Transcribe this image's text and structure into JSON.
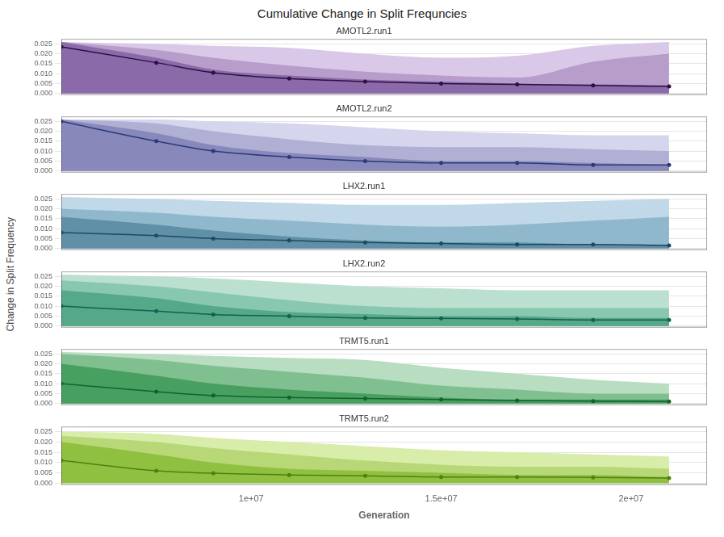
{
  "title": "Cumulative Change in Split Frequncies",
  "ylabel": "Change in Split Frequency",
  "chart_data": [
    {
      "type": "line",
      "subtitle": "AMOTL2.run1",
      "x": [
        5000000,
        7500000,
        9000000,
        11000000,
        13000000,
        15000000,
        17000000,
        19000000,
        21000000
      ],
      "series": [
        {
          "color": "#2d0f45",
          "marker": "circle",
          "values": [
            0.0235,
            0.0155,
            0.0105,
            0.0075,
            0.006,
            0.005,
            0.0045,
            0.004,
            0.0035
          ]
        },
        {
          "type": "area",
          "color": "#8b6aaa",
          "values": [
            0.026,
            0.018,
            0.012,
            0.009,
            0.007,
            0.006,
            0.005,
            0.0045,
            0.004
          ]
        },
        {
          "type": "area",
          "color": "#b89dca",
          "values": [
            0.026,
            0.022,
            0.018,
            0.014,
            0.011,
            0.009,
            0.008,
            0.016,
            0.02
          ]
        },
        {
          "type": "area",
          "color": "#d9c8e8",
          "values": [
            0.026,
            0.025,
            0.024,
            0.023,
            0.02,
            0.018,
            0.019,
            0.024,
            0.026
          ]
        }
      ],
      "xlim": [
        5000000,
        22000000
      ],
      "ylim": [
        -0.0008,
        0.0275
      ],
      "yticks": [
        {
          "value": 0,
          "label": "0.000"
        },
        0.005,
        {
          "value": 0.01,
          "label": "0.010"
        },
        0.015,
        {
          "value": 0.02,
          "label": "0.020"
        },
        0.025
      ],
      "grid": "y",
      "tick_labels": "y"
    },
    {
      "type": "line",
      "subtitle": "AMOTL2.run2",
      "x": [
        5000000,
        7500000,
        9000000,
        11000000,
        13000000,
        15000000,
        17000000,
        19000000,
        21000000
      ],
      "series": [
        {
          "color": "#2a3a7a",
          "marker": "circle",
          "values": [
            0.025,
            0.015,
            0.01,
            0.007,
            0.005,
            0.004,
            0.004,
            0.003,
            0.003
          ]
        },
        {
          "type": "area",
          "color": "#8888bb",
          "values": [
            0.026,
            0.019,
            0.013,
            0.009,
            0.007,
            0.005,
            0.005,
            0.004,
            0.003
          ]
        },
        {
          "type": "area",
          "color": "#b0b0d5",
          "values": [
            0.026,
            0.024,
            0.02,
            0.016,
            0.013,
            0.012,
            0.012,
            0.011,
            0.01
          ]
        },
        {
          "type": "area",
          "color": "#d5d5ee",
          "values": [
            0.026,
            0.026,
            0.025,
            0.024,
            0.022,
            0.02,
            0.019,
            0.018,
            0.018
          ]
        }
      ],
      "xlim": [
        5000000,
        22000000
      ],
      "ylim": [
        -0.0008,
        0.0275
      ],
      "yticks": [
        {
          "value": 0,
          "label": "0.000"
        },
        0.005,
        {
          "value": 0.01,
          "label": "0.010"
        },
        0.015,
        {
          "value": 0.02,
          "label": "0.020"
        },
        0.025
      ],
      "grid": "y",
      "tick_labels": "y"
    },
    {
      "type": "line",
      "subtitle": "LHX2.run1",
      "x": [
        5000000,
        7500000,
        9000000,
        11000000,
        13000000,
        15000000,
        17000000,
        19000000,
        21000000
      ],
      "series": [
        {
          "color": "#1e4a5e",
          "marker": "circle",
          "values": [
            0.008,
            0.0065,
            0.005,
            0.004,
            0.003,
            0.0025,
            0.002,
            0.002,
            0.0015
          ]
        },
        {
          "type": "area",
          "color": "#6090a8",
          "values": [
            0.016,
            0.012,
            0.009,
            0.006,
            0.004,
            0.003,
            0.003,
            0.002,
            0.002
          ]
        },
        {
          "type": "area",
          "color": "#90b8cc",
          "values": [
            0.02,
            0.018,
            0.016,
            0.014,
            0.012,
            0.011,
            0.012,
            0.014,
            0.016
          ]
        },
        {
          "type": "area",
          "color": "#c0d8e8",
          "values": [
            0.026,
            0.025,
            0.024,
            0.023,
            0.022,
            0.022,
            0.023,
            0.024,
            0.025
          ]
        }
      ],
      "xlim": [
        5000000,
        22000000
      ],
      "ylim": [
        -0.0008,
        0.0275
      ],
      "yticks": [
        {
          "value": 0,
          "label": "0.000"
        },
        0.005,
        {
          "value": 0.01,
          "label": "0.010"
        },
        0.015,
        {
          "value": 0.02,
          "label": "0.020"
        },
        0.025
      ],
      "grid": "y",
      "tick_labels": "y"
    },
    {
      "type": "line",
      "subtitle": "LHX2.run2",
      "x": [
        5000000,
        7500000,
        9000000,
        11000000,
        13000000,
        15000000,
        17000000,
        19000000,
        21000000
      ],
      "series": [
        {
          "color": "#156050",
          "marker": "circle",
          "values": [
            0.01,
            0.0075,
            0.0058,
            0.005,
            0.004,
            0.0038,
            0.0035,
            0.003,
            0.003
          ]
        },
        {
          "type": "area",
          "color": "#55a888",
          "values": [
            0.018,
            0.014,
            0.01,
            0.007,
            0.006,
            0.005,
            0.005,
            0.004,
            0.004
          ]
        },
        {
          "type": "area",
          "color": "#88c8b0",
          "values": [
            0.023,
            0.02,
            0.017,
            0.013,
            0.01,
            0.009,
            0.009,
            0.009,
            0.009
          ]
        },
        {
          "type": "area",
          "color": "#bbe0d0",
          "values": [
            0.026,
            0.025,
            0.024,
            0.022,
            0.02,
            0.019,
            0.018,
            0.018,
            0.018
          ]
        }
      ],
      "xlim": [
        5000000,
        22000000
      ],
      "ylim": [
        -0.0008,
        0.0275
      ],
      "yticks": [
        {
          "value": 0,
          "label": "0.000"
        },
        0.005,
        {
          "value": 0.01,
          "label": "0.010"
        },
        0.015,
        {
          "value": 0.02,
          "label": "0.020"
        },
        0.025
      ],
      "grid": "y",
      "tick_labels": "y"
    },
    {
      "type": "line",
      "subtitle": "TRMT5.run1",
      "x": [
        5000000,
        7500000,
        9000000,
        11000000,
        13000000,
        15000000,
        17000000,
        19000000,
        21000000
      ],
      "series": [
        {
          "color": "#156030",
          "marker": "circle",
          "values": [
            0.01,
            0.006,
            0.004,
            0.003,
            0.0025,
            0.002,
            0.0015,
            0.0012,
            0.001
          ]
        },
        {
          "type": "area",
          "color": "#48a060",
          "values": [
            0.02,
            0.014,
            0.01,
            0.007,
            0.005,
            0.003,
            0.002,
            0.002,
            0.002
          ]
        },
        {
          "type": "area",
          "color": "#80c090",
          "values": [
            0.025,
            0.022,
            0.019,
            0.016,
            0.013,
            0.009,
            0.007,
            0.005,
            0.005
          ]
        },
        {
          "type": "area",
          "color": "#b8ddc0",
          "values": [
            0.026,
            0.025,
            0.024,
            0.023,
            0.022,
            0.018,
            0.015,
            0.012,
            0.01
          ]
        }
      ],
      "xlim": [
        5000000,
        22000000
      ],
      "ylim": [
        -0.0008,
        0.0275
      ],
      "yticks": [
        {
          "value": 0,
          "label": "0.000"
        },
        0.005,
        {
          "value": 0.01,
          "label": "0.010"
        },
        0.015,
        {
          "value": 0.02,
          "label": "0.020"
        },
        0.025
      ],
      "grid": "y",
      "tick_labels": "y"
    },
    {
      "type": "line",
      "subtitle": "TRMT5.run2",
      "xlabel": "Generation",
      "x": [
        5000000,
        7500000,
        9000000,
        11000000,
        13000000,
        15000000,
        17000000,
        19000000,
        21000000
      ],
      "series": [
        {
          "color": "#508010",
          "marker": "circle",
          "values": [
            0.011,
            0.006,
            0.0048,
            0.004,
            0.0036,
            0.003,
            0.003,
            0.0028,
            0.0025
          ]
        },
        {
          "type": "area",
          "color": "#90c040",
          "values": [
            0.02,
            0.014,
            0.01,
            0.007,
            0.006,
            0.005,
            0.004,
            0.004,
            0.003
          ]
        },
        {
          "type": "area",
          "color": "#b8d878",
          "values": [
            0.023,
            0.02,
            0.017,
            0.014,
            0.011,
            0.009,
            0.008,
            0.008,
            0.007
          ]
        },
        {
          "type": "area",
          "color": "#d8edaa",
          "values": [
            0.025,
            0.024,
            0.022,
            0.02,
            0.018,
            0.016,
            0.015,
            0.014,
            0.013
          ]
        }
      ],
      "xlim": [
        5000000,
        22000000
      ],
      "ylim": [
        -0.0008,
        0.0275
      ],
      "xticks": [
        {
          "value": 10000000,
          "label": "1e+07"
        },
        {
          "value": 15000000,
          "label": "1.5e+07"
        },
        {
          "value": 20000000,
          "label": "2e+07"
        }
      ],
      "yticks": [
        {
          "value": 0,
          "label": "0.000"
        },
        0.005,
        {
          "value": 0.01,
          "label": "0.010"
        },
        0.015,
        {
          "value": 0.02,
          "label": "0.020"
        },
        0.025
      ],
      "grid": "y"
    }
  ]
}
